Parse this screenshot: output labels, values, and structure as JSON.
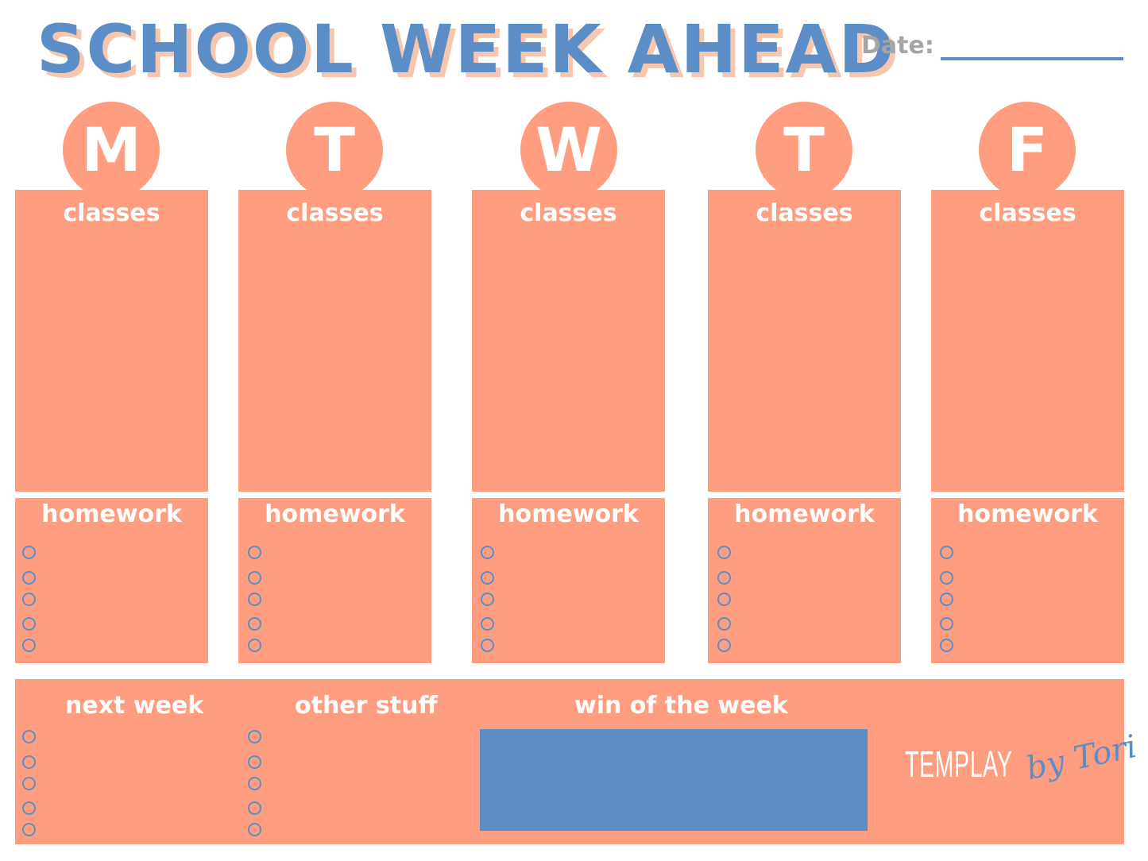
{
  "title": "SCHOOL WEEK AHEAD",
  "date_label": "Date:",
  "days": [
    {
      "letter": "M",
      "classes_label": "classes",
      "homework_label": "homework"
    },
    {
      "letter": "T",
      "classes_label": "classes",
      "homework_label": "homework"
    },
    {
      "letter": "W",
      "classes_label": "classes",
      "homework_label": "homework"
    },
    {
      "letter": "T",
      "classes_label": "classes",
      "homework_label": "homework"
    },
    {
      "letter": "F",
      "classes_label": "classes",
      "homework_label": "homework"
    }
  ],
  "bottom": {
    "next_week_label": "next week",
    "other_stuff_label": "other stuff",
    "win_label": "win of the week"
  },
  "logo": {
    "main": "TEMPLAY",
    "script": "by Tori"
  },
  "colors": {
    "accent_blue": "#5b8ec6",
    "salmon": "#fe9d80",
    "shadow_peach": "#f8c5ad",
    "date_gray": "#a5a5a5"
  }
}
